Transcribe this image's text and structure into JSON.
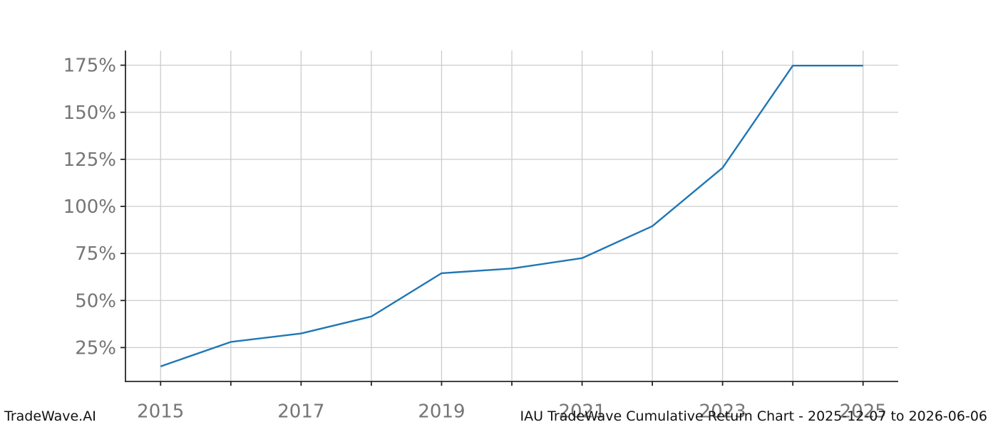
{
  "chart_data": {
    "type": "line",
    "title": "IAU TradeWave Cumulative Return Chart - 2025-12-07 to 2026-06-06",
    "xlabel": "",
    "ylabel": "",
    "series": [
      {
        "name": "IAU cumulative return",
        "x": [
          2015,
          2016,
          2017,
          2018,
          2019,
          2020,
          2021,
          2022,
          2023,
          2024,
          2025
        ],
        "values": [
          15,
          28,
          32.5,
          41.5,
          64.5,
          67,
          72.5,
          89.5,
          120.5,
          174.8,
          174.8
        ]
      }
    ],
    "x_grid_years": [
      2015,
      2016,
      2017,
      2018,
      2019,
      2020,
      2021,
      2022,
      2023,
      2024,
      2025
    ],
    "x_tick_labels": [
      "2015",
      "2017",
      "2019",
      "2021",
      "2023",
      "2025"
    ],
    "x_tick_values": [
      2015,
      2017,
      2019,
      2021,
      2023,
      2025
    ],
    "y_tick_labels": [
      "25%",
      "50%",
      "75%",
      "100%",
      "125%",
      "150%",
      "175%"
    ],
    "y_tick_values": [
      25,
      50,
      75,
      100,
      125,
      150,
      175
    ],
    "xlim": [
      2014.5,
      2025.5
    ],
    "ylim": [
      7,
      182.8
    ],
    "grid": "on",
    "legend": "none",
    "colors": {
      "line": "#1f77b4",
      "grid": "#cccccc",
      "axis": "#262626",
      "tick_label": "#757575",
      "footer_text": "#111111"
    }
  },
  "footer": {
    "brand": "TradeWave.AI",
    "caption": "IAU TradeWave Cumulative Return Chart - 2025-12-07 to 2026-06-06"
  }
}
